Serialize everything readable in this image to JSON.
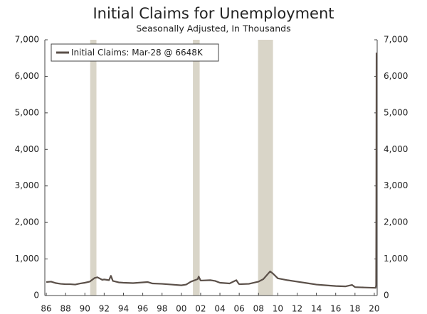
{
  "chart_data": {
    "type": "line",
    "title": "Initial Claims for Unemployment",
    "subtitle": "Seasonally Adjusted, In Thousands",
    "x": [
      1986.0,
      1986.5,
      1987.0,
      1987.5,
      1988.0,
      1988.5,
      1989.0,
      1989.5,
      1990.0,
      1990.5,
      1991.0,
      1991.3,
      1991.8,
      1992.0,
      1992.5,
      1992.7,
      1992.9,
      1993.5,
      1994.0,
      1995.0,
      1996.0,
      1996.5,
      1997.0,
      1998.0,
      1999.0,
      2000.0,
      2000.5,
      2001.0,
      2001.7,
      2001.8,
      2002.0,
      2003.0,
      2003.5,
      2004.0,
      2005.0,
      2005.7,
      2005.9,
      2006.0,
      2007.0,
      2008.0,
      2008.5,
      2009.2,
      2009.5,
      2010.0,
      2011.0,
      2012.0,
      2013.0,
      2014.0,
      2015.0,
      2016.0,
      2017.0,
      2017.7,
      2018.0,
      2019.0,
      2020.15,
      2020.19,
      2020.21,
      2020.23
    ],
    "series": [
      {
        "name": "Initial Claims: Mar-28 @ 6648K",
        "color": "#5b5049",
        "values": [
          370,
          380,
          340,
          320,
          310,
          310,
          300,
          330,
          350,
          380,
          480,
          500,
          430,
          440,
          420,
          540,
          400,
          360,
          350,
          340,
          360,
          370,
          330,
          320,
          300,
          280,
          300,
          380,
          450,
          520,
          410,
          420,
          400,
          350,
          330,
          420,
          340,
          310,
          320,
          380,
          450,
          660,
          600,
          470,
          420,
          380,
          340,
          300,
          280,
          260,
          250,
          290,
          230,
          220,
          210,
          282,
          2600,
          6648
        ]
      }
    ],
    "recessions": [
      [
        1990.55,
        1991.2
      ],
      [
        2001.2,
        2001.9
      ],
      [
        2007.95,
        2009.5
      ]
    ],
    "recession_color": "#d9d5c8",
    "xlim": [
      1985.85,
      2020.3
    ],
    "xticks": [
      {
        "value": 1986,
        "label": "86"
      },
      {
        "value": 1988,
        "label": "88"
      },
      {
        "value": 1990,
        "label": "90"
      },
      {
        "value": 1992,
        "label": "92"
      },
      {
        "value": 1994,
        "label": "94"
      },
      {
        "value": 1996,
        "label": "96"
      },
      {
        "value": 1998,
        "label": "98"
      },
      {
        "value": 2000,
        "label": "00"
      },
      {
        "value": 2002,
        "label": "02"
      },
      {
        "value": 2004,
        "label": "04"
      },
      {
        "value": 2006,
        "label": "06"
      },
      {
        "value": 2008,
        "label": "08"
      },
      {
        "value": 2010,
        "label": "10"
      },
      {
        "value": 2012,
        "label": "12"
      },
      {
        "value": 2014,
        "label": "14"
      },
      {
        "value": 2016,
        "label": "16"
      },
      {
        "value": 2018,
        "label": "18"
      },
      {
        "value": 2020,
        "label": "20"
      }
    ],
    "ylim": [
      0,
      7000
    ],
    "yticks": [
      0,
      {
        "value": 1000,
        "label": "1,000"
      },
      {
        "value": 2000,
        "label": "2,000"
      },
      {
        "value": 3000,
        "label": "3,000"
      },
      {
        "value": 4000,
        "label": "4,000"
      },
      {
        "value": 5000,
        "label": "5,000"
      },
      {
        "value": 6000,
        "label": "6,000"
      },
      {
        "value": 7000,
        "label": "7,000"
      }
    ],
    "y2lim": [
      0,
      7000
    ],
    "y2ticks": [
      0,
      {
        "value": 1000,
        "label": "1,000"
      },
      {
        "value": 2000,
        "label": "2,000"
      },
      {
        "value": 3000,
        "label": "3,000"
      },
      {
        "value": 4000,
        "label": "4,000"
      },
      {
        "value": 5000,
        "label": "5,000"
      },
      {
        "value": 6000,
        "label": "6,000"
      },
      {
        "value": 7000,
        "label": "7,000"
      }
    ],
    "legend": "top-left"
  }
}
